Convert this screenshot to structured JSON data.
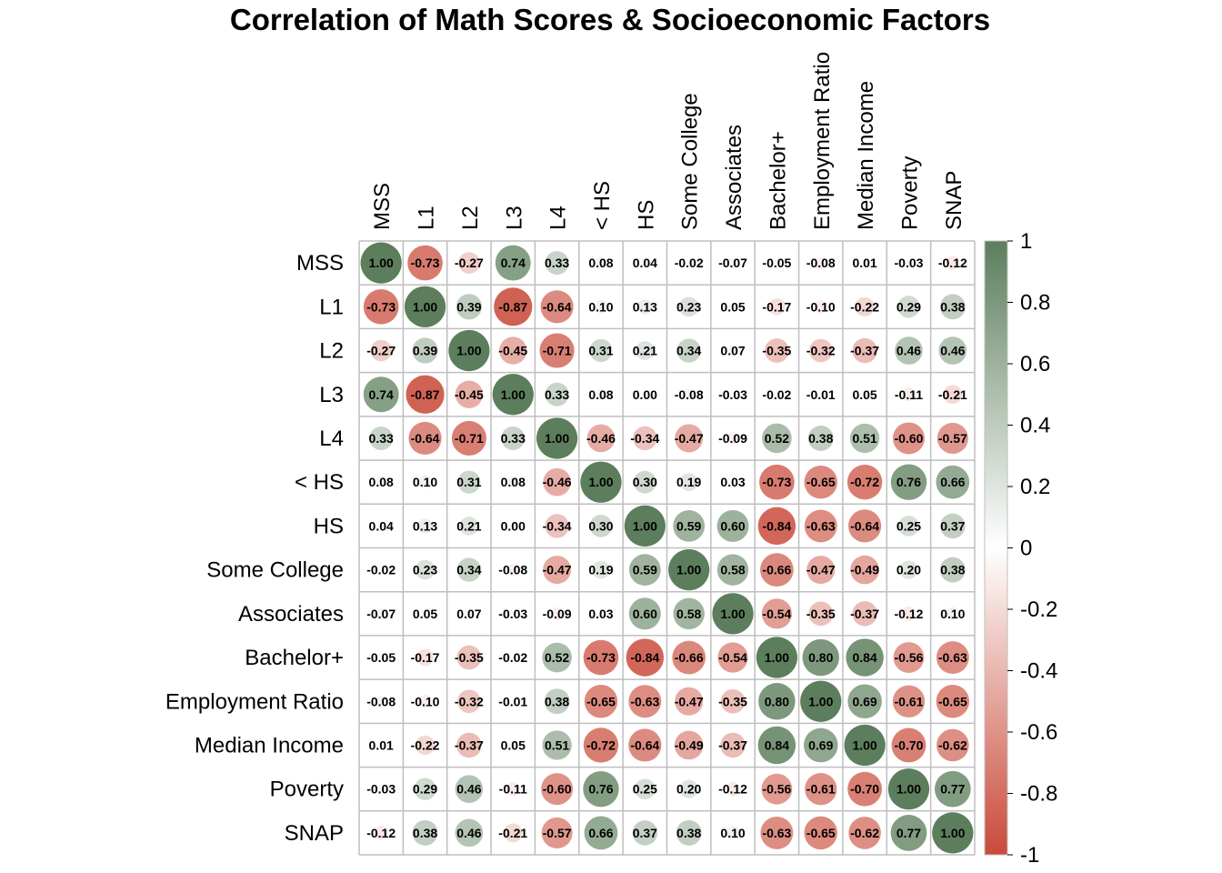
{
  "chart_data": {
    "type": "heatmap",
    "title": "Correlation of Math Scores & Socioeconomic Factors",
    "variables": [
      "MSS",
      "L1",
      "L2",
      "L3",
      "L4",
      "< HS",
      "HS",
      "Some College",
      "Associates",
      "Bachelor+",
      "Employment Ratio",
      "Median Income",
      "Poverty",
      "SNAP"
    ],
    "matrix": [
      [
        1.0,
        -0.73,
        -0.27,
        0.74,
        0.33,
        0.08,
        0.04,
        -0.02,
        -0.07,
        -0.05,
        -0.08,
        0.01,
        -0.03,
        -0.12
      ],
      [
        -0.73,
        1.0,
        0.39,
        -0.87,
        -0.64,
        0.1,
        0.13,
        0.23,
        0.05,
        -0.17,
        -0.1,
        -0.22,
        0.29,
        0.38
      ],
      [
        -0.27,
        0.39,
        1.0,
        -0.45,
        -0.71,
        0.31,
        0.21,
        0.34,
        0.07,
        -0.35,
        -0.32,
        -0.37,
        0.46,
        0.46
      ],
      [
        0.74,
        -0.87,
        -0.45,
        1.0,
        0.33,
        0.08,
        0.0,
        -0.08,
        -0.03,
        -0.02,
        -0.01,
        0.05,
        -0.11,
        -0.21
      ],
      [
        0.33,
        -0.64,
        -0.71,
        0.33,
        1.0,
        -0.46,
        -0.34,
        -0.47,
        -0.09,
        0.52,
        0.38,
        0.51,
        -0.6,
        -0.57
      ],
      [
        0.08,
        0.1,
        0.31,
        0.08,
        -0.46,
        1.0,
        0.3,
        0.19,
        0.03,
        -0.73,
        -0.65,
        -0.72,
        0.76,
        0.66
      ],
      [
        0.04,
        0.13,
        0.21,
        0.0,
        -0.34,
        0.3,
        1.0,
        0.59,
        0.6,
        -0.84,
        -0.63,
        -0.64,
        0.25,
        0.37
      ],
      [
        -0.02,
        0.23,
        0.34,
        -0.08,
        -0.47,
        0.19,
        0.59,
        1.0,
        0.58,
        -0.66,
        -0.47,
        -0.49,
        0.2,
        0.38
      ],
      [
        -0.07,
        0.05,
        0.07,
        -0.03,
        -0.09,
        0.03,
        0.6,
        0.58,
        1.0,
        -0.54,
        -0.35,
        -0.37,
        -0.12,
        0.1
      ],
      [
        -0.05,
        -0.17,
        -0.35,
        -0.02,
        0.52,
        -0.73,
        -0.84,
        -0.66,
        -0.54,
        1.0,
        0.8,
        0.84,
        -0.56,
        -0.63
      ],
      [
        -0.08,
        -0.1,
        -0.32,
        -0.01,
        0.38,
        -0.65,
        -0.63,
        -0.47,
        -0.35,
        0.8,
        1.0,
        0.69,
        -0.61,
        -0.65
      ],
      [
        0.01,
        -0.22,
        -0.37,
        0.05,
        0.51,
        -0.72,
        -0.64,
        -0.49,
        -0.37,
        0.84,
        0.69,
        1.0,
        -0.7,
        -0.62
      ],
      [
        -0.03,
        0.29,
        0.46,
        -0.11,
        -0.6,
        0.76,
        0.25,
        0.2,
        -0.12,
        -0.56,
        -0.61,
        -0.7,
        1.0,
        0.77
      ],
      [
        -0.12,
        0.38,
        0.46,
        -0.21,
        -0.57,
        0.66,
        0.37,
        0.38,
        0.1,
        -0.63,
        -0.65,
        -0.62,
        0.77,
        1.0
      ]
    ],
    "value_range": [
      -1,
      1
    ],
    "colorbar_ticks": [
      "1",
      "0.8",
      "0.6",
      "0.4",
      "0.2",
      "0",
      "-0.2",
      "-0.4",
      "-0.6",
      "-0.8",
      "-1"
    ],
    "colors": {
      "negative": "#c94a39",
      "mid": "#ffffff",
      "positive": "#5c7e5c",
      "grid": "#bfbfbf"
    }
  }
}
